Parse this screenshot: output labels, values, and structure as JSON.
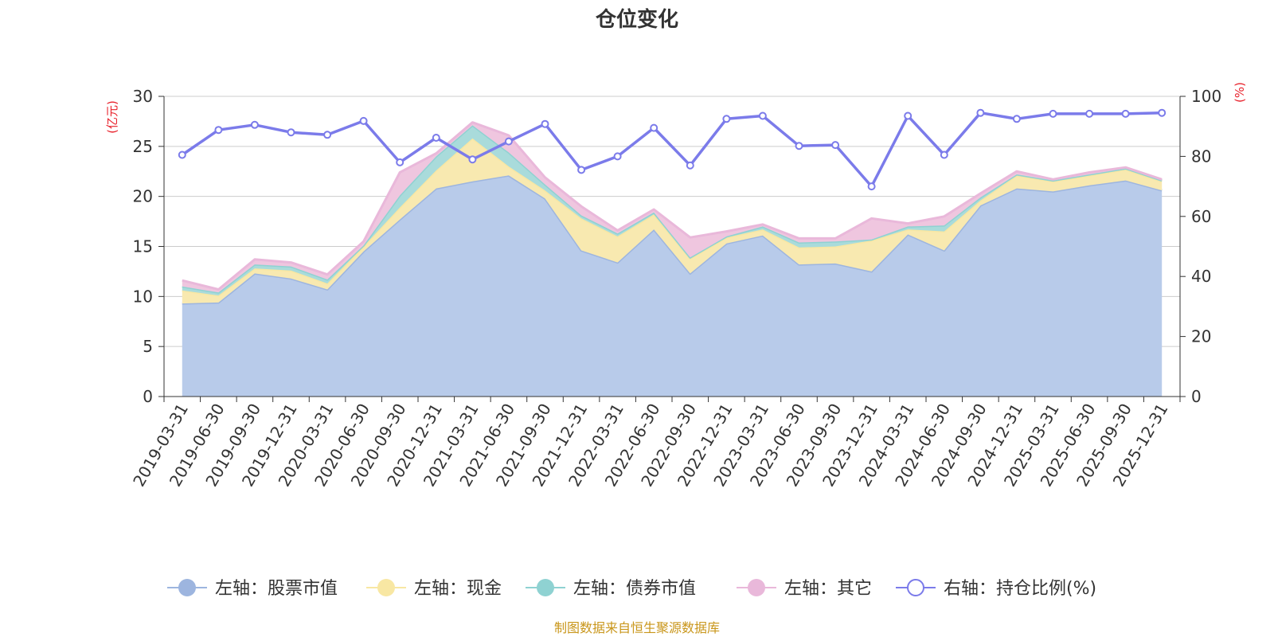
{
  "chart_data": {
    "type": "area",
    "title": "仓位变化",
    "left_unit": "(亿元)",
    "right_unit": "(%)",
    "source": "制图数据来自恒生聚源数据库",
    "left_ylim": [
      0,
      30
    ],
    "left_ticks": [
      "0",
      "5",
      "10",
      "15",
      "20",
      "25",
      "30"
    ],
    "right_ylim": [
      0,
      100
    ],
    "right_ticks": [
      "0",
      "20",
      "40",
      "60",
      "80",
      "100"
    ],
    "categories": [
      "2019-03-31",
      "2019-06-30",
      "2019-09-30",
      "2019-12-31",
      "2020-03-31",
      "2020-06-30",
      "2020-09-30",
      "2020-12-31",
      "2021-03-31",
      "2021-06-30",
      "2021-09-30",
      "2021-12-31",
      "2022-03-31",
      "2022-06-30",
      "2022-09-30",
      "2022-12-31",
      "2023-03-31",
      "2023-06-30",
      "2023-09-30",
      "2023-12-31",
      "2024-03-31",
      "2024-06-30",
      "2024-09-30",
      "2024-12-31",
      "2025-03-31",
      "2025-06-30",
      "2025-09-30",
      "2025-12-31"
    ],
    "series": [
      {
        "name": "左轴：股票市值",
        "color": "#9db5df",
        "fill": "#b8cbea",
        "axis": "left",
        "values": [
          9.3,
          9.4,
          12.3,
          11.8,
          10.7,
          14.5,
          17.7,
          20.8,
          21.5,
          22.1,
          19.8,
          14.6,
          13.4,
          16.7,
          12.3,
          15.3,
          16.1,
          13.2,
          13.3,
          12.5,
          16.2,
          14.6,
          19.1,
          20.8,
          20.5,
          21.1,
          21.6,
          20.6
        ]
      },
      {
        "name": "左轴：现金",
        "color": "#f8e7a3",
        "fill": "#f8e9b0",
        "axis": "left",
        "values": [
          1.3,
          0.7,
          0.5,
          0.8,
          0.6,
          0.5,
          1.2,
          1.8,
          4.3,
          0.9,
          0.8,
          3.2,
          2.6,
          1.5,
          1.5,
          0.6,
          0.6,
          1.7,
          1.7,
          3.1,
          0.5,
          1.9,
          0.5,
          1.3,
          1.0,
          1.0,
          1.1,
          0.9
        ]
      },
      {
        "name": "左轴：债券市值",
        "color": "#8fd2d2",
        "fill": "#a9dbdb",
        "axis": "left",
        "values": [
          0.4,
          0.3,
          0.4,
          0.4,
          0.4,
          0.1,
          1.2,
          1.4,
          1.3,
          1.4,
          0.6,
          0.3,
          0.3,
          0.2,
          0.1,
          0.1,
          0.3,
          0.5,
          0.5,
          0.1,
          0.3,
          0.6,
          0.3,
          0.1,
          0.1,
          0.1,
          0.1,
          0.1
        ]
      },
      {
        "name": "左轴：其它",
        "color": "#e9b8da",
        "fill": "#efc6df",
        "axis": "left",
        "values": [
          0.6,
          0.3,
          0.5,
          0.4,
          0.5,
          0.4,
          2.3,
          0.3,
          0.3,
          1.7,
          0.7,
          0.9,
          0.3,
          0.3,
          2.0,
          0.5,
          0.2,
          0.4,
          0.3,
          2.1,
          0.3,
          0.9,
          0.4,
          0.3,
          0.1,
          0.2,
          0.1,
          0.1
        ]
      },
      {
        "name": "右轴：持仓比例(%)",
        "color": "#7b7bea",
        "axis": "right",
        "values": [
          80.5,
          88.8,
          90.5,
          88.0,
          87.2,
          91.8,
          78.0,
          86.2,
          79.0,
          85.0,
          90.8,
          75.5,
          80.0,
          89.5,
          77.0,
          92.5,
          93.5,
          83.5,
          83.8,
          70.0,
          93.5,
          80.5,
          94.5,
          92.5,
          94.2,
          94.2,
          94.2,
          94.5
        ]
      }
    ]
  },
  "legend": [
    {
      "label": "左轴：股票市值",
      "icon": "filled-circle",
      "color": "#9db5df"
    },
    {
      "label": "左轴：现金",
      "icon": "filled-circle",
      "color": "#f8e7a3"
    },
    {
      "label": "左轴：债券市值",
      "icon": "filled-circle",
      "color": "#8fd2d2"
    },
    {
      "label": "左轴：其它",
      "icon": "filled-circle",
      "color": "#e9b8da"
    },
    {
      "label": "右轴：持仓比例(%)",
      "icon": "hollow-circle",
      "color": "#7b7bea"
    }
  ]
}
